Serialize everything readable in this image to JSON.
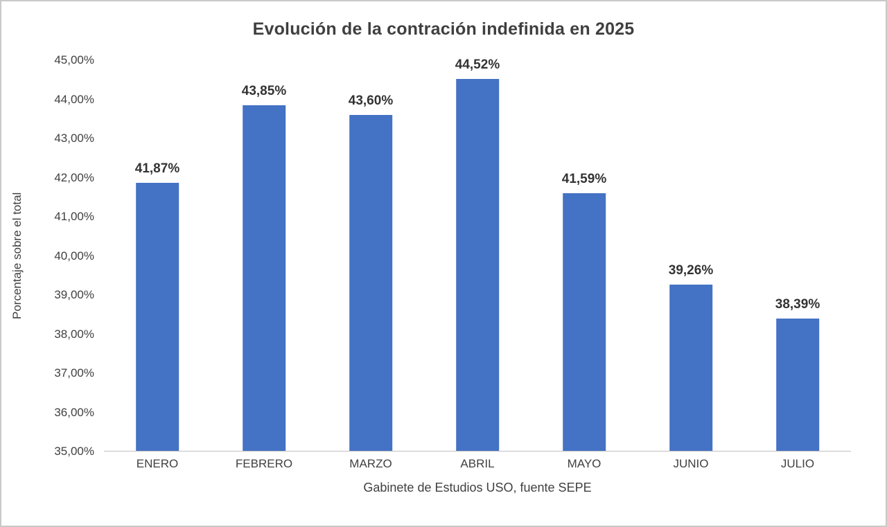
{
  "chart_data": {
    "type": "bar",
    "title": "Evolución de la contración indefinida en 2025",
    "categories": [
      "ENERO",
      "FEBRERO",
      "MARZO",
      "ABRIL",
      "MAYO",
      "JUNIO",
      "JULIO"
    ],
    "values": [
      41.87,
      43.85,
      43.6,
      44.52,
      41.59,
      39.26,
      38.39
    ],
    "value_labels": [
      "41,87%",
      "43,85%",
      "43,60%",
      "44,52%",
      "41,59%",
      "39,26%",
      "38,39%"
    ],
    "xlabel": "Gabinete de Estudios USO, fuente SEPE",
    "ylabel": "Porcentaje sobre el total",
    "ylim": [
      35,
      45
    ],
    "ytick_values": [
      35,
      36,
      37,
      38,
      39,
      40,
      41,
      42,
      43,
      44,
      45
    ],
    "ytick_labels": [
      "35,00%",
      "36,00%",
      "37,00%",
      "38,00%",
      "39,00%",
      "40,00%",
      "41,00%",
      "42,00%",
      "43,00%",
      "44,00%",
      "45,00%"
    ],
    "bar_color": "#4472C4",
    "axis_line_color": "#bfbfbf",
    "legend_position": "none",
    "grid": false
  }
}
